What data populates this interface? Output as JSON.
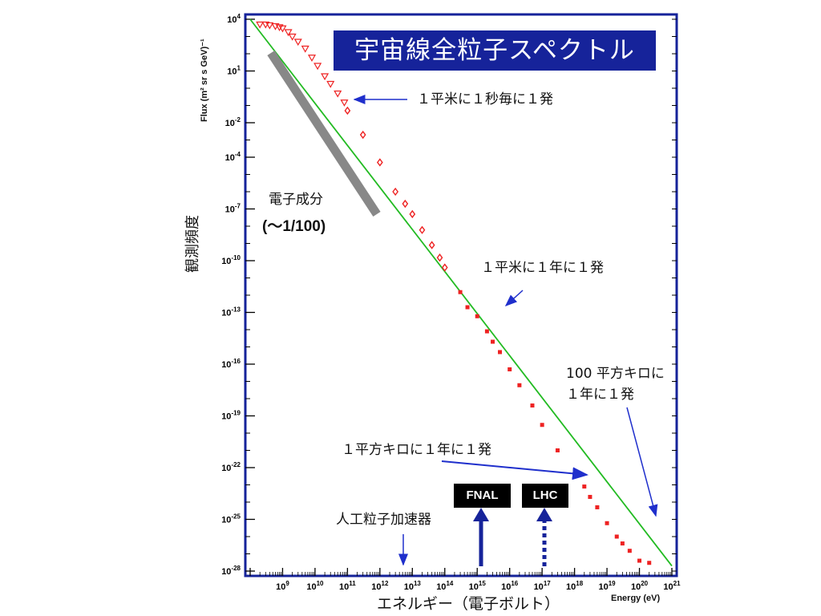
{
  "title": "宇宙線全粒子スペクトル",
  "chart_data": {
    "type": "scatter",
    "y_axis_label": "Flux (m² sr s GeV)⁻¹",
    "y_axis_label_jp": "観測頻度",
    "x_axis_label_jp": "エネルギー（電子ボルト）",
    "x_axis_label": "Energy (eV)",
    "log_x": true,
    "log_y": true,
    "x_range": [
      100000000.0,
      1e+21
    ],
    "y_range": [
      1e-28,
      10000.0
    ],
    "x_tick_exponents": [
      9,
      10,
      11,
      12,
      13,
      14,
      15,
      16,
      17,
      18,
      19,
      20,
      21
    ],
    "y_tick_exponents": [
      4,
      1,
      -2,
      -4,
      -7,
      -10,
      -13,
      -16,
      -19,
      -22,
      -25,
      -28
    ],
    "grid": false,
    "reference_line": {
      "x": [
        100000000.0,
        1e+21
      ],
      "y": [
        10000.0,
        2e-28
      ],
      "color": "#22bb22"
    },
    "series": [
      {
        "marker": "triangle",
        "color": "#ee2222",
        "x": [
          200000000.0,
          300000000.0,
          400000000.0,
          600000000.0,
          800000000.0,
          1000000000.0,
          1500000000.0,
          2000000000.0,
          3000000000.0,
          5000000000.0,
          8000000000.0,
          12000000000.0,
          20000000000.0,
          30000000000.0,
          50000000000.0,
          80000000000.0
        ],
        "y": [
          5000,
          5000,
          4500,
          4000,
          3500,
          3000,
          1800,
          1000,
          500,
          200,
          60,
          20,
          5,
          1.8,
          0.5,
          0.15
        ]
      },
      {
        "marker": "diamond",
        "color": "#ee2222",
        "x": [
          100000000000.0,
          300000000000.0,
          1000000000000.0,
          3000000000000.0,
          6000000000000.0,
          10000000000000.0,
          20000000000000.0,
          40000000000000.0,
          70000000000000.0,
          100000000000000.0
        ],
        "y": [
          0.05,
          0.002,
          5e-05,
          1e-06,
          2e-07,
          5e-08,
          6e-09,
          8e-10,
          1.5e-10,
          4e-11
        ]
      },
      {
        "marker": "square",
        "color": "#ee2222",
        "x": [
          300000000000000.0,
          500000000000000.0,
          1000000000000000.0,
          2000000000000000.0,
          3000000000000000.0,
          5000000000000000.0,
          1e+16,
          2e+16,
          5e+16,
          1e+17,
          3e+17,
          1e+18,
          2e+18,
          3e+18,
          5e+18,
          1e+19,
          2e+19,
          3e+19,
          5e+19,
          1e+20,
          2e+20
        ],
        "y": [
          1.5e-12,
          2e-13,
          6e-14,
          8e-15,
          2e-15,
          5e-16,
          5e-17,
          6e-18,
          4e-19,
          3e-20,
          1e-21,
          4e-23,
          8e-24,
          2e-24,
          5e-25,
          6e-26,
          1e-26,
          4e-27,
          1.5e-27,
          4e-28,
          3e-28
        ]
      }
    ]
  },
  "electron_band": {
    "label_line1": "電子成分",
    "label_line2": "(〜1/100)"
  },
  "annotations": {
    "rate_1m2_1s": "１平米に１秒毎に１発",
    "rate_1m2_1yr": "１平米に１年に１発",
    "rate_100km2_line1": "100 平方キロに",
    "rate_100km2_line2": "１年に１発",
    "rate_1km2_1yr": "１平方キロに１年に１発",
    "accelerators": "人工粒子加速器"
  },
  "accelerators": [
    {
      "name": "FNAL",
      "energy_ev": 1000000000000000.0,
      "style": "solid"
    },
    {
      "name": "LHC",
      "energy_ev": 1e+17,
      "style": "dashed"
    }
  ],
  "colors": {
    "frame": "#16239a",
    "data": "#ee2222",
    "fit": "#22bb22",
    "arrow": "#1f2fcc",
    "band": "#888888"
  }
}
